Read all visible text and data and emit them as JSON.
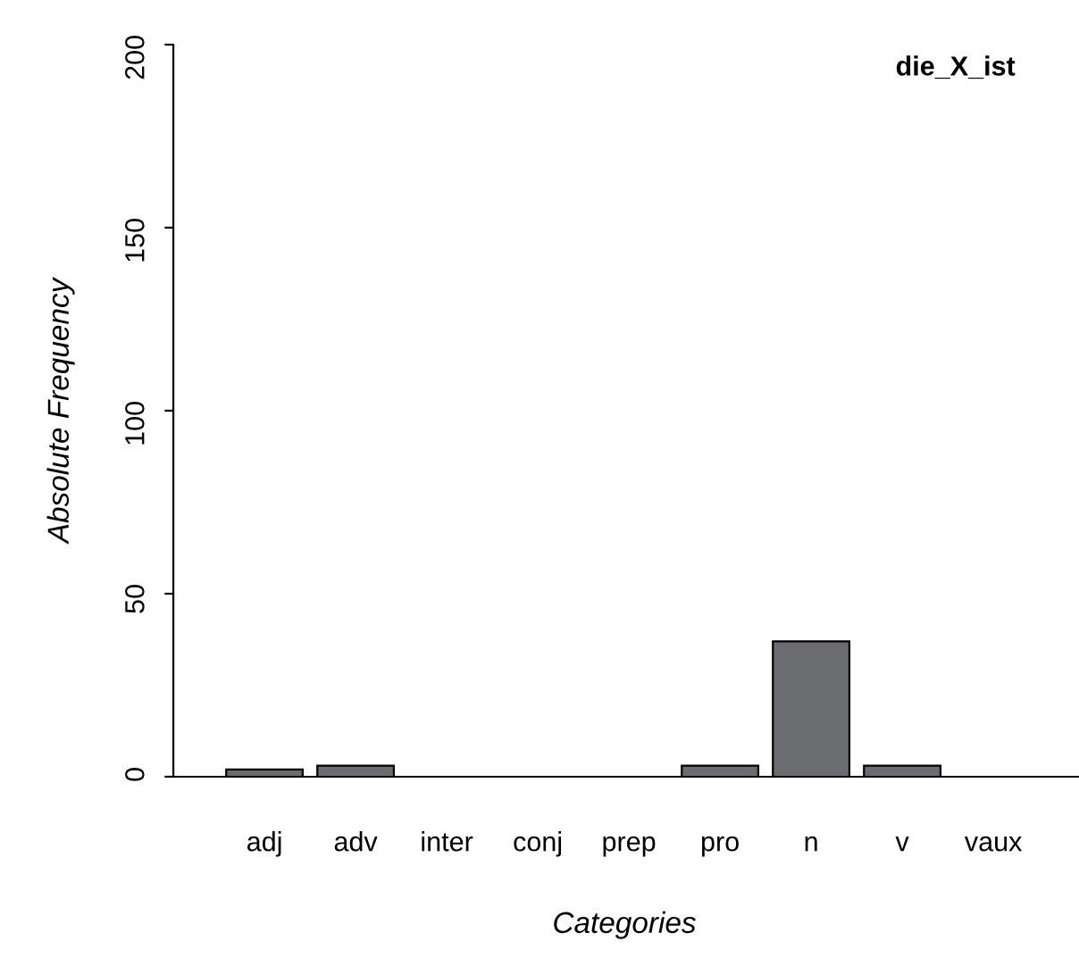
{
  "chart_data": {
    "type": "bar",
    "title": "die_X_ist",
    "xlabel": "Categories",
    "ylabel": "Absolute Frequency",
    "categories": [
      "adj",
      "adv",
      "inter",
      "conj",
      "prep",
      "pro",
      "n",
      "v",
      "vaux"
    ],
    "values": [
      2,
      3,
      0,
      0,
      0,
      3,
      37,
      3,
      0
    ],
    "color": "#6b6c70",
    "ylim": [
      0,
      200
    ],
    "yticks": [
      0,
      50,
      100,
      150,
      200
    ],
    "grid": false
  }
}
